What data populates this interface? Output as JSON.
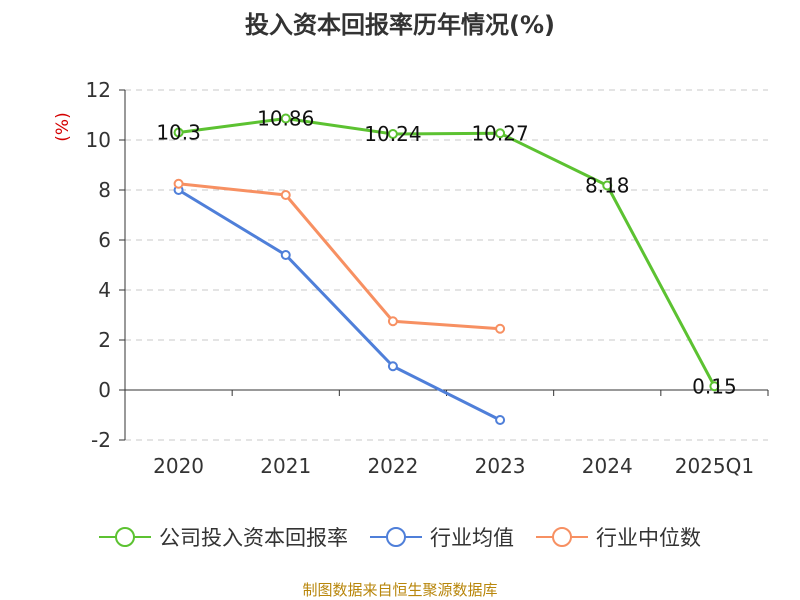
{
  "colors": {
    "roi": "#5cc231",
    "avg": "#4f7fd9",
    "median": "#f79062",
    "axis": "#333333",
    "grid": "#c8c8c8",
    "source": "#b8860b",
    "ylabel": "#d40000"
  },
  "chart_data": {
    "type": "line",
    "title": "投入资本回报率历年情况(%)",
    "ylabel": "(%)",
    "xlabel": "",
    "categories": [
      "2020",
      "2021",
      "2022",
      "2023",
      "2024",
      "2025Q1"
    ],
    "ylim": [
      -2,
      12
    ],
    "yticks": [
      "12",
      "10",
      "8",
      "6",
      "4",
      "2",
      "0",
      "-2"
    ],
    "grid": true,
    "legend_position": "bottom",
    "series": [
      {
        "name": "公司投入资本回报率",
        "color_key": "roi",
        "values": [
          10.3,
          10.86,
          10.24,
          10.27,
          8.18,
          0.15
        ],
        "labels": [
          "10.3",
          "10.86",
          "10.24",
          "10.27",
          "8.18",
          "0.15"
        ]
      },
      {
        "name": "行业均值",
        "color_key": "avg",
        "values": [
          8.0,
          5.4,
          0.95,
          -1.2,
          null,
          null
        ]
      },
      {
        "name": "行业中位数",
        "color_key": "median",
        "values": [
          8.25,
          7.8,
          2.75,
          2.45,
          null,
          null
        ]
      }
    ]
  },
  "source": "制图数据来自恒生聚源数据库"
}
